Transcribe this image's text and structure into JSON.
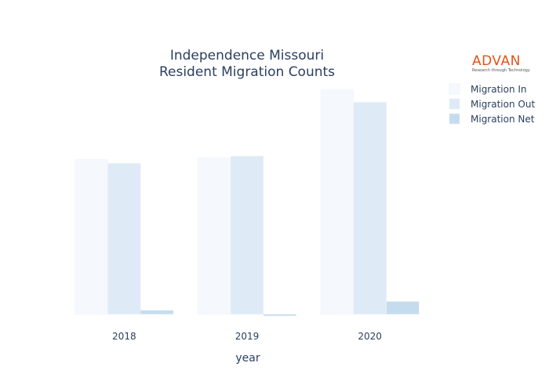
{
  "logo": {
    "name": "ADVAN",
    "tagline": "Research through Technology",
    "color": "#e0541c"
  },
  "chart_data": {
    "type": "bar",
    "title_line1": "Independence Missouri",
    "title_line2": "Resident Migration Counts",
    "xlabel": "year",
    "ylabel": "",
    "categories": [
      "2018",
      "2019",
      "2020"
    ],
    "series": [
      {
        "name": "Migration In",
        "color": "#f5f9fd",
        "values": [
          1930,
          1950,
          2800
        ]
      },
      {
        "name": "Migration Out",
        "color": "#deeaf6",
        "values": [
          1880,
          1970,
          2640
        ]
      },
      {
        "name": "Migration Net",
        "color": "#c5dcef",
        "values": [
          50,
          -20,
          160
        ]
      }
    ],
    "ylim": [
      -40,
      2820
    ],
    "grid": false,
    "legend_position": "top-right"
  }
}
